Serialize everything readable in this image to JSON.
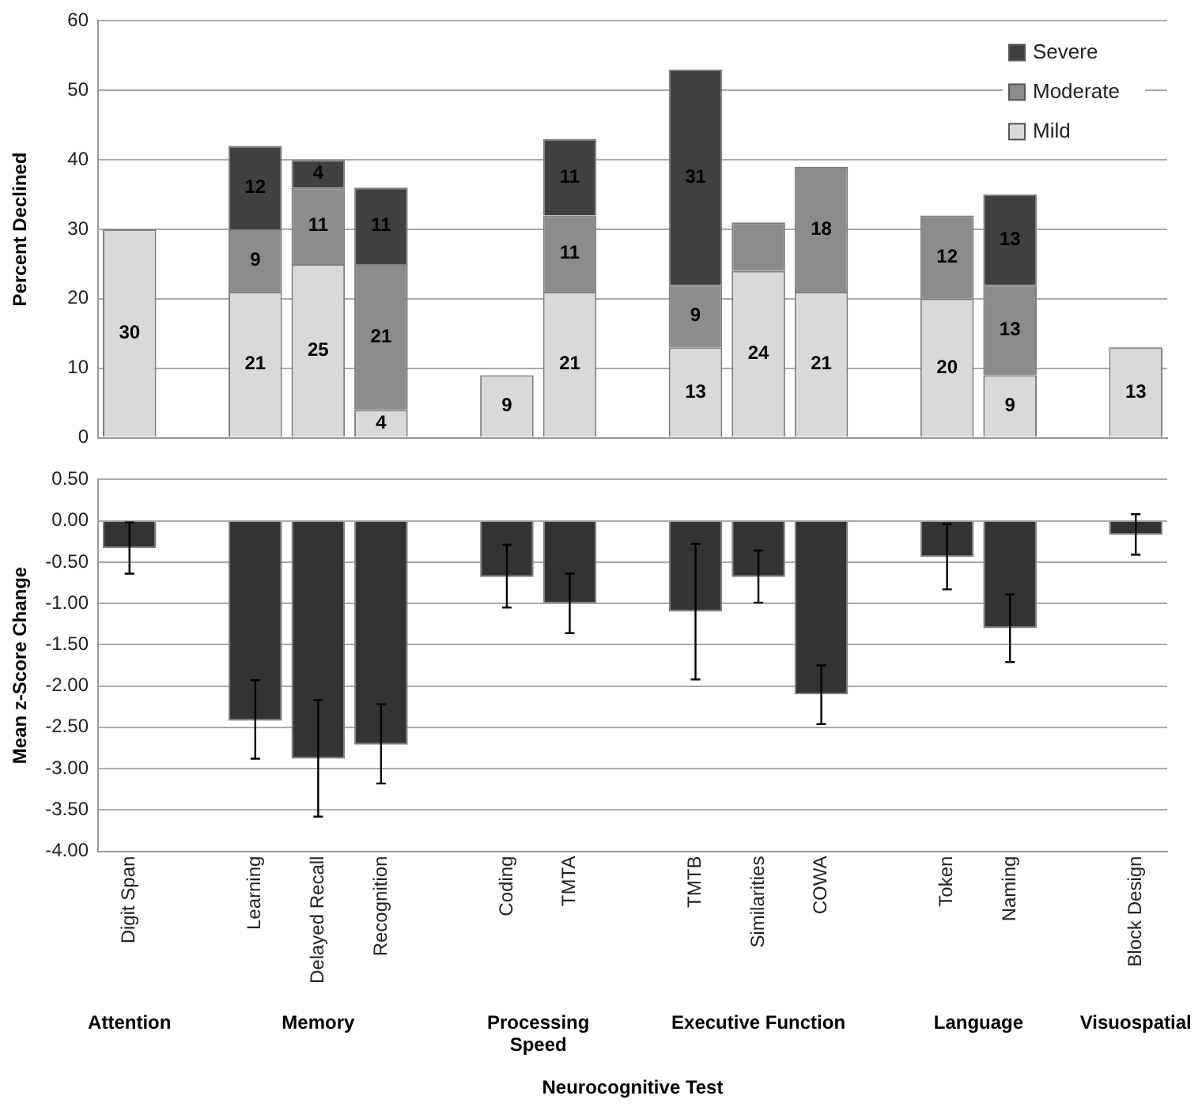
{
  "chart_data": [
    {
      "type": "bar",
      "ylabel": "Percent Declined",
      "stacked": true,
      "grid": "y",
      "legend": "top right",
      "tick_labels": "y",
      "categories": [
        null,
        null,
        null,
        null,
        null,
        null,
        null,
        null,
        null,
        null,
        null,
        null,
        null,
        null,
        null,
        null,
        null
      ],
      "ylim": [
        0,
        60
      ],
      "yticks": [
        0,
        10,
        20,
        30,
        40,
        50,
        60
      ],
      "series": [
        {
          "name": "Mild",
          "color": "#d9d9d9",
          "values": [
            30,
            null,
            21,
            25,
            4,
            null,
            9,
            21,
            null,
            13,
            24,
            21,
            null,
            20,
            9,
            null,
            13
          ],
          "value_labels": [
            "30",
            null,
            "21",
            "25",
            "4",
            null,
            "9",
            "21",
            null,
            "13",
            "24",
            "21",
            null,
            "20",
            "9",
            null,
            "13"
          ]
        },
        {
          "name": "Moderate",
          "color": "#8c8c8c",
          "values": [
            null,
            null,
            9,
            11,
            21,
            null,
            null,
            11,
            null,
            9,
            7,
            18,
            null,
            12,
            13,
            null,
            null
          ],
          "value_labels": [
            null,
            null,
            "9",
            "11",
            "21",
            null,
            null,
            "11",
            null,
            "9",
            null,
            "18",
            null,
            "12",
            "13",
            null,
            null
          ]
        },
        {
          "name": "Severe",
          "color": "#404040",
          "values": [
            null,
            null,
            12,
            4,
            11,
            null,
            null,
            11,
            null,
            31,
            null,
            null,
            null,
            null,
            13,
            null,
            null
          ],
          "value_labels": [
            null,
            null,
            "12",
            "4",
            "11",
            null,
            null,
            "11",
            null,
            "31",
            null,
            null,
            null,
            null,
            "13",
            null,
            null
          ]
        }
      ]
    },
    {
      "type": "bar",
      "ylabel": "Mean z-Score Change",
      "xlabel": "Neurocognitive Test",
      "grid": "y",
      "color": "#333333",
      "categories": [
        "Digit Span",
        null,
        "Learning",
        "Delayed Recall",
        "Recognition",
        null,
        "Coding",
        "TMTA",
        null,
        "TMTB",
        "Similarities",
        "COWA",
        null,
        "Token",
        "Naming",
        null,
        "Block Design"
      ],
      "ylim": [
        -4,
        0.5
      ],
      "yticks": [
        {
          "value": -4,
          "label": "-4.00"
        },
        {
          "value": -3.5,
          "label": "-3.50"
        },
        {
          "value": -3,
          "label": "-3.00"
        },
        {
          "value": -2.5,
          "label": "-2.50"
        },
        {
          "value": -2,
          "label": "-2.00"
        },
        {
          "value": -1.5,
          "label": "-1.50"
        },
        {
          "value": -1,
          "label": "-1.00"
        },
        {
          "value": -0.5,
          "label": "-0.50"
        },
        {
          "value": 0,
          "label": "0.00"
        },
        {
          "value": 0.5,
          "label": "0.50"
        }
      ],
      "values": [
        -0.33,
        null,
        -2.42,
        -2.88,
        -2.71,
        null,
        -0.68,
        -1.0,
        null,
        -1.1,
        -0.68,
        -2.1,
        null,
        -0.44,
        -1.3,
        null,
        -0.17
      ],
      "errors": [
        [
          -0.64,
          -0.02
        ],
        null,
        [
          -2.88,
          -1.93
        ],
        [
          -3.58,
          -2.17
        ],
        [
          -3.18,
          -2.22
        ],
        null,
        [
          -1.05,
          -0.29
        ],
        [
          -1.36,
          -0.64
        ],
        null,
        [
          -1.92,
          -0.28
        ],
        [
          -0.99,
          -0.36
        ],
        [
          -2.46,
          -1.75
        ],
        null,
        [
          -0.83,
          -0.04
        ],
        [
          -1.71,
          -0.89
        ],
        null,
        [
          -0.41,
          0.08
        ]
      ],
      "annotations": [
        "Attention",
        "Memory",
        "Processing Speed",
        "Executive Function",
        "Language",
        "Visuospatial"
      ]
    }
  ]
}
